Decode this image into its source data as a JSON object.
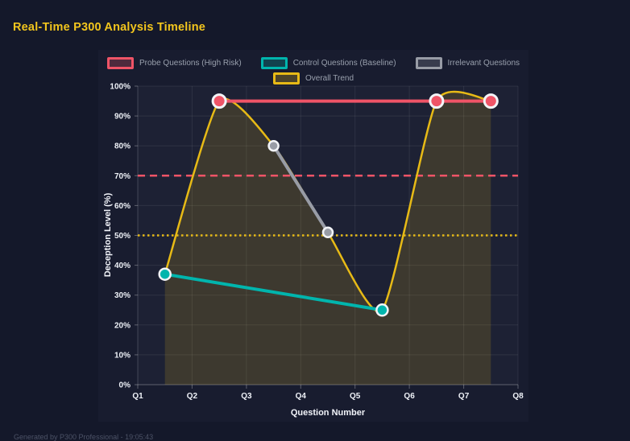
{
  "page": {
    "footer": "Generated by P300 Professional - 19:05:43"
  },
  "chart_data": {
    "type": "line",
    "title": "Real-Time P300 Analysis Timeline",
    "xlabel": "Question Number",
    "ylabel": "Deception Level (%)",
    "x_range": [
      1,
      8
    ],
    "x_ticks": [
      "Q1",
      "Q2",
      "Q3",
      "Q4",
      "Q5",
      "Q6",
      "Q7",
      "Q8"
    ],
    "ylim": [
      0,
      100
    ],
    "y_tick_step": 10,
    "y_ticks": [
      "0%",
      "10%",
      "20%",
      "30%",
      "40%",
      "50%",
      "60%",
      "70%",
      "80%",
      "90%",
      "100%"
    ],
    "grid": true,
    "legend_position": "top",
    "series": [
      {
        "id": "probe",
        "name": "Probe Questions (High Risk)",
        "color": "#ef5467",
        "line": "straight",
        "point_radius": 8,
        "points": [
          [
            2.5,
            95
          ],
          [
            6.5,
            95
          ],
          [
            7.5,
            95
          ]
        ]
      },
      {
        "id": "control",
        "name": "Control Questions (Baseline)",
        "color": "#00b5ad",
        "line": "straight",
        "point_radius": 7,
        "points": [
          [
            1.5,
            37
          ],
          [
            5.5,
            25
          ]
        ]
      },
      {
        "id": "irrelevant",
        "name": "Irrelevant Questions",
        "color": "#989ca6",
        "line": "straight",
        "point_radius": 6,
        "points": [
          [
            3.5,
            80
          ],
          [
            4.5,
            51
          ]
        ]
      },
      {
        "id": "trend",
        "name": "Overall Trend",
        "color": "#e7ba16",
        "line": "smooth",
        "fill": true,
        "fill_color_alpha": 0.16,
        "point_radius": 0,
        "points": [
          [
            1.5,
            37
          ],
          [
            2.5,
            95
          ],
          [
            3.5,
            80
          ],
          [
            4.5,
            51
          ],
          [
            5.5,
            25
          ],
          [
            6.5,
            95
          ],
          [
            7.5,
            95
          ]
        ]
      }
    ],
    "reference_lines": [
      {
        "y": 70,
        "color": "#ef5467",
        "style": "dashed"
      },
      {
        "y": 50,
        "color": "#e7ba16",
        "style": "dotted"
      }
    ]
  },
  "legend": {
    "rows": [
      [
        0,
        1,
        2
      ],
      [
        3
      ]
    ]
  }
}
